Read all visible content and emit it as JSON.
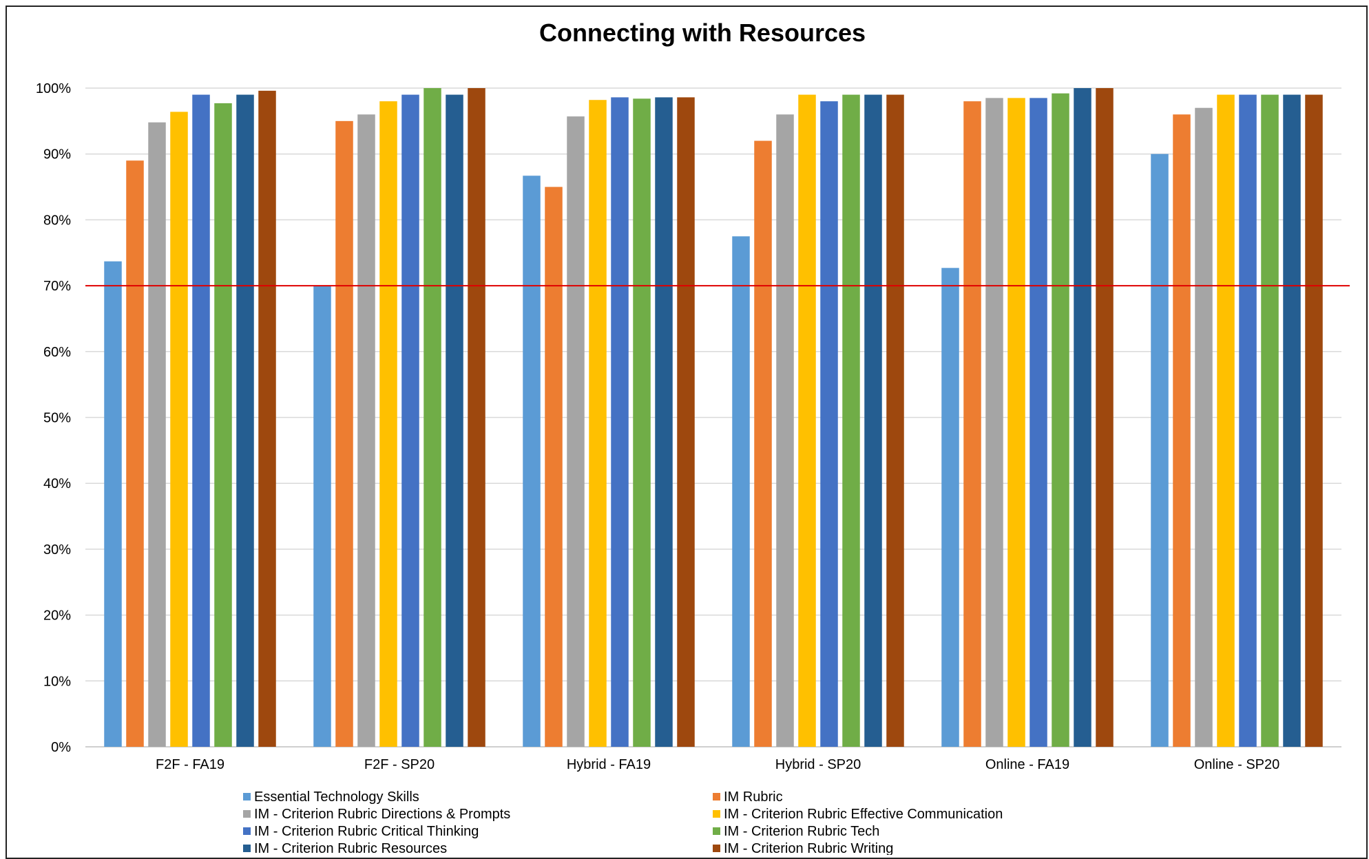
{
  "chart_data": {
    "type": "bar",
    "title": "Connecting with Resources",
    "xlabel": "",
    "ylabel": "",
    "ylim": [
      0,
      1
    ],
    "yticks": [
      "0%",
      "10%",
      "20%",
      "30%",
      "40%",
      "50%",
      "60%",
      "70%",
      "80%",
      "90%",
      "100%"
    ],
    "grid": true,
    "legend_position": "bottom",
    "reference_line": {
      "value": 0.7,
      "color": "#E00000"
    },
    "categories": [
      "F2F - FA19",
      "F2F - SP20",
      "Hybrid - FA19",
      "Hybrid - SP20",
      "Online - FA19",
      "Online - SP20"
    ],
    "series": [
      {
        "name": "Essential Technology Skills",
        "color": "#5B9BD5",
        "values": [
          0.737,
          0.7,
          0.867,
          0.775,
          0.727,
          0.9
        ]
      },
      {
        "name": "IM Rubric",
        "color": "#ED7D31",
        "values": [
          0.89,
          0.95,
          0.85,
          0.92,
          0.98,
          0.96
        ]
      },
      {
        "name": "IM - Criterion Rubric Directions & Prompts",
        "color": "#A5A5A5",
        "values": [
          0.948,
          0.96,
          0.957,
          0.96,
          0.985,
          0.97
        ]
      },
      {
        "name": "IM - Criterion Rubric Effective Communication",
        "color": "#FFC000",
        "values": [
          0.964,
          0.98,
          0.982,
          0.99,
          0.985,
          0.99
        ]
      },
      {
        "name": "IM - Criterion Rubric Critical Thinking",
        "color": "#4472C4",
        "values": [
          0.99,
          0.99,
          0.986,
          0.98,
          0.985,
          0.99
        ]
      },
      {
        "name": "IM - Criterion Rubric Tech",
        "color": "#70AD47",
        "values": [
          0.977,
          1.0,
          0.984,
          0.99,
          0.992,
          0.99
        ]
      },
      {
        "name": "IM - Criterion Rubric Resources",
        "color": "#255E91",
        "values": [
          0.99,
          0.99,
          0.986,
          0.99,
          1.0,
          0.99
        ]
      },
      {
        "name": "IM - Criterion Rubric Writing",
        "color": "#9E480E",
        "values": [
          0.996,
          1.0,
          0.986,
          0.99,
          1.0,
          0.99
        ]
      }
    ]
  }
}
